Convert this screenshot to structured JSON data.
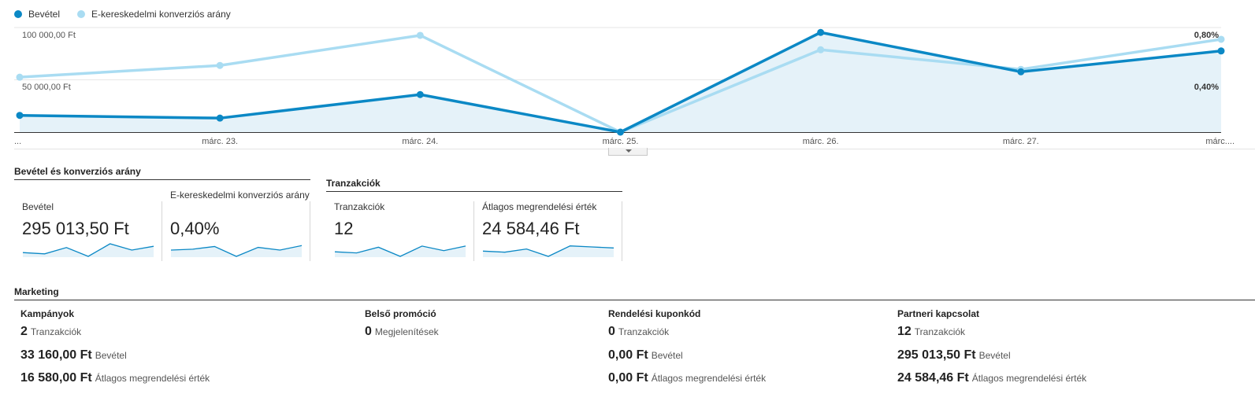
{
  "legend": {
    "series1": "Bevétel",
    "series2": "E-kereskedelmi konverziós arány",
    "color1": "#0b88c5",
    "color2": "#a9dcf2"
  },
  "chart_data": {
    "type": "line",
    "categories": [
      "...",
      "márc. 23.",
      "márc. 24.",
      "márc. 25.",
      "márc. 26.",
      "márc. 27.",
      "márc...."
    ],
    "left_axis_ticks": [
      "100 000,00 Ft",
      "50 000,00 Ft"
    ],
    "right_axis_ticks": [
      "0,80%",
      "0,40%"
    ],
    "ylim_left": [
      0,
      100000
    ],
    "ylim_right": [
      0,
      0.8
    ],
    "grid": true,
    "legend_position": "top-left",
    "series": [
      {
        "name": "Bevétel",
        "axis": "left",
        "color": "#0b88c5",
        "area": true,
        "values": [
          16000,
          13400,
          35900,
          0,
          95300,
          57700,
          77600
        ]
      },
      {
        "name": "E-kereskedelmi konverziós arány",
        "axis": "right",
        "color": "#a9dcf2",
        "area": false,
        "values": [
          0.42,
          0.51,
          0.74,
          0.0,
          0.63,
          0.48,
          0.71
        ]
      }
    ]
  },
  "sections": {
    "revenue_title": "Bevétel és konverziós arány",
    "transactions_title": "Tranzakciók",
    "marketing_title": "Marketing"
  },
  "metrics": [
    {
      "label": "Bevétel",
      "value": "295 013,50 Ft",
      "spark": [
        7,
        8,
        3,
        10,
        0,
        5,
        2
      ]
    },
    {
      "label": "E-kereskedelmi konverziós arány",
      "value": "0,40%",
      "spark": [
        7,
        6,
        3,
        14,
        4,
        7,
        2
      ]
    },
    {
      "label": "Tranzakciók",
      "value": "12",
      "spark": [
        7,
        8,
        3,
        11,
        2,
        6,
        2
      ]
    },
    {
      "label": "Átlagos megrendelési érték",
      "value": "24 584,46 Ft",
      "spark": [
        7,
        8,
        5,
        12,
        2,
        3,
        4
      ]
    }
  ],
  "marketing": [
    {
      "title": "Kampányok",
      "rows": [
        {
          "value": "2",
          "label": "Tranzakciók"
        },
        {
          "value": "33 160,00 Ft",
          "label": "Bevétel"
        },
        {
          "value": "16 580,00 Ft",
          "label": "Átlagos megrendelési érték"
        }
      ]
    },
    {
      "title": "Belső promóció",
      "rows": [
        {
          "value": "0",
          "label": "Megjelenítések"
        }
      ]
    },
    {
      "title": "Rendelési kuponkód",
      "rows": [
        {
          "value": "0",
          "label": "Tranzakciók"
        },
        {
          "value": "0,00 Ft",
          "label": "Bevétel"
        },
        {
          "value": "0,00 Ft",
          "label": "Átlagos megrendelési érték"
        }
      ]
    },
    {
      "title": "Partneri kapcsolat",
      "rows": [
        {
          "value": "12",
          "label": "Tranzakciók"
        },
        {
          "value": "295 013,50 Ft",
          "label": "Bevétel"
        },
        {
          "value": "24 584,46 Ft",
          "label": "Átlagos megrendelési érték"
        }
      ]
    }
  ]
}
